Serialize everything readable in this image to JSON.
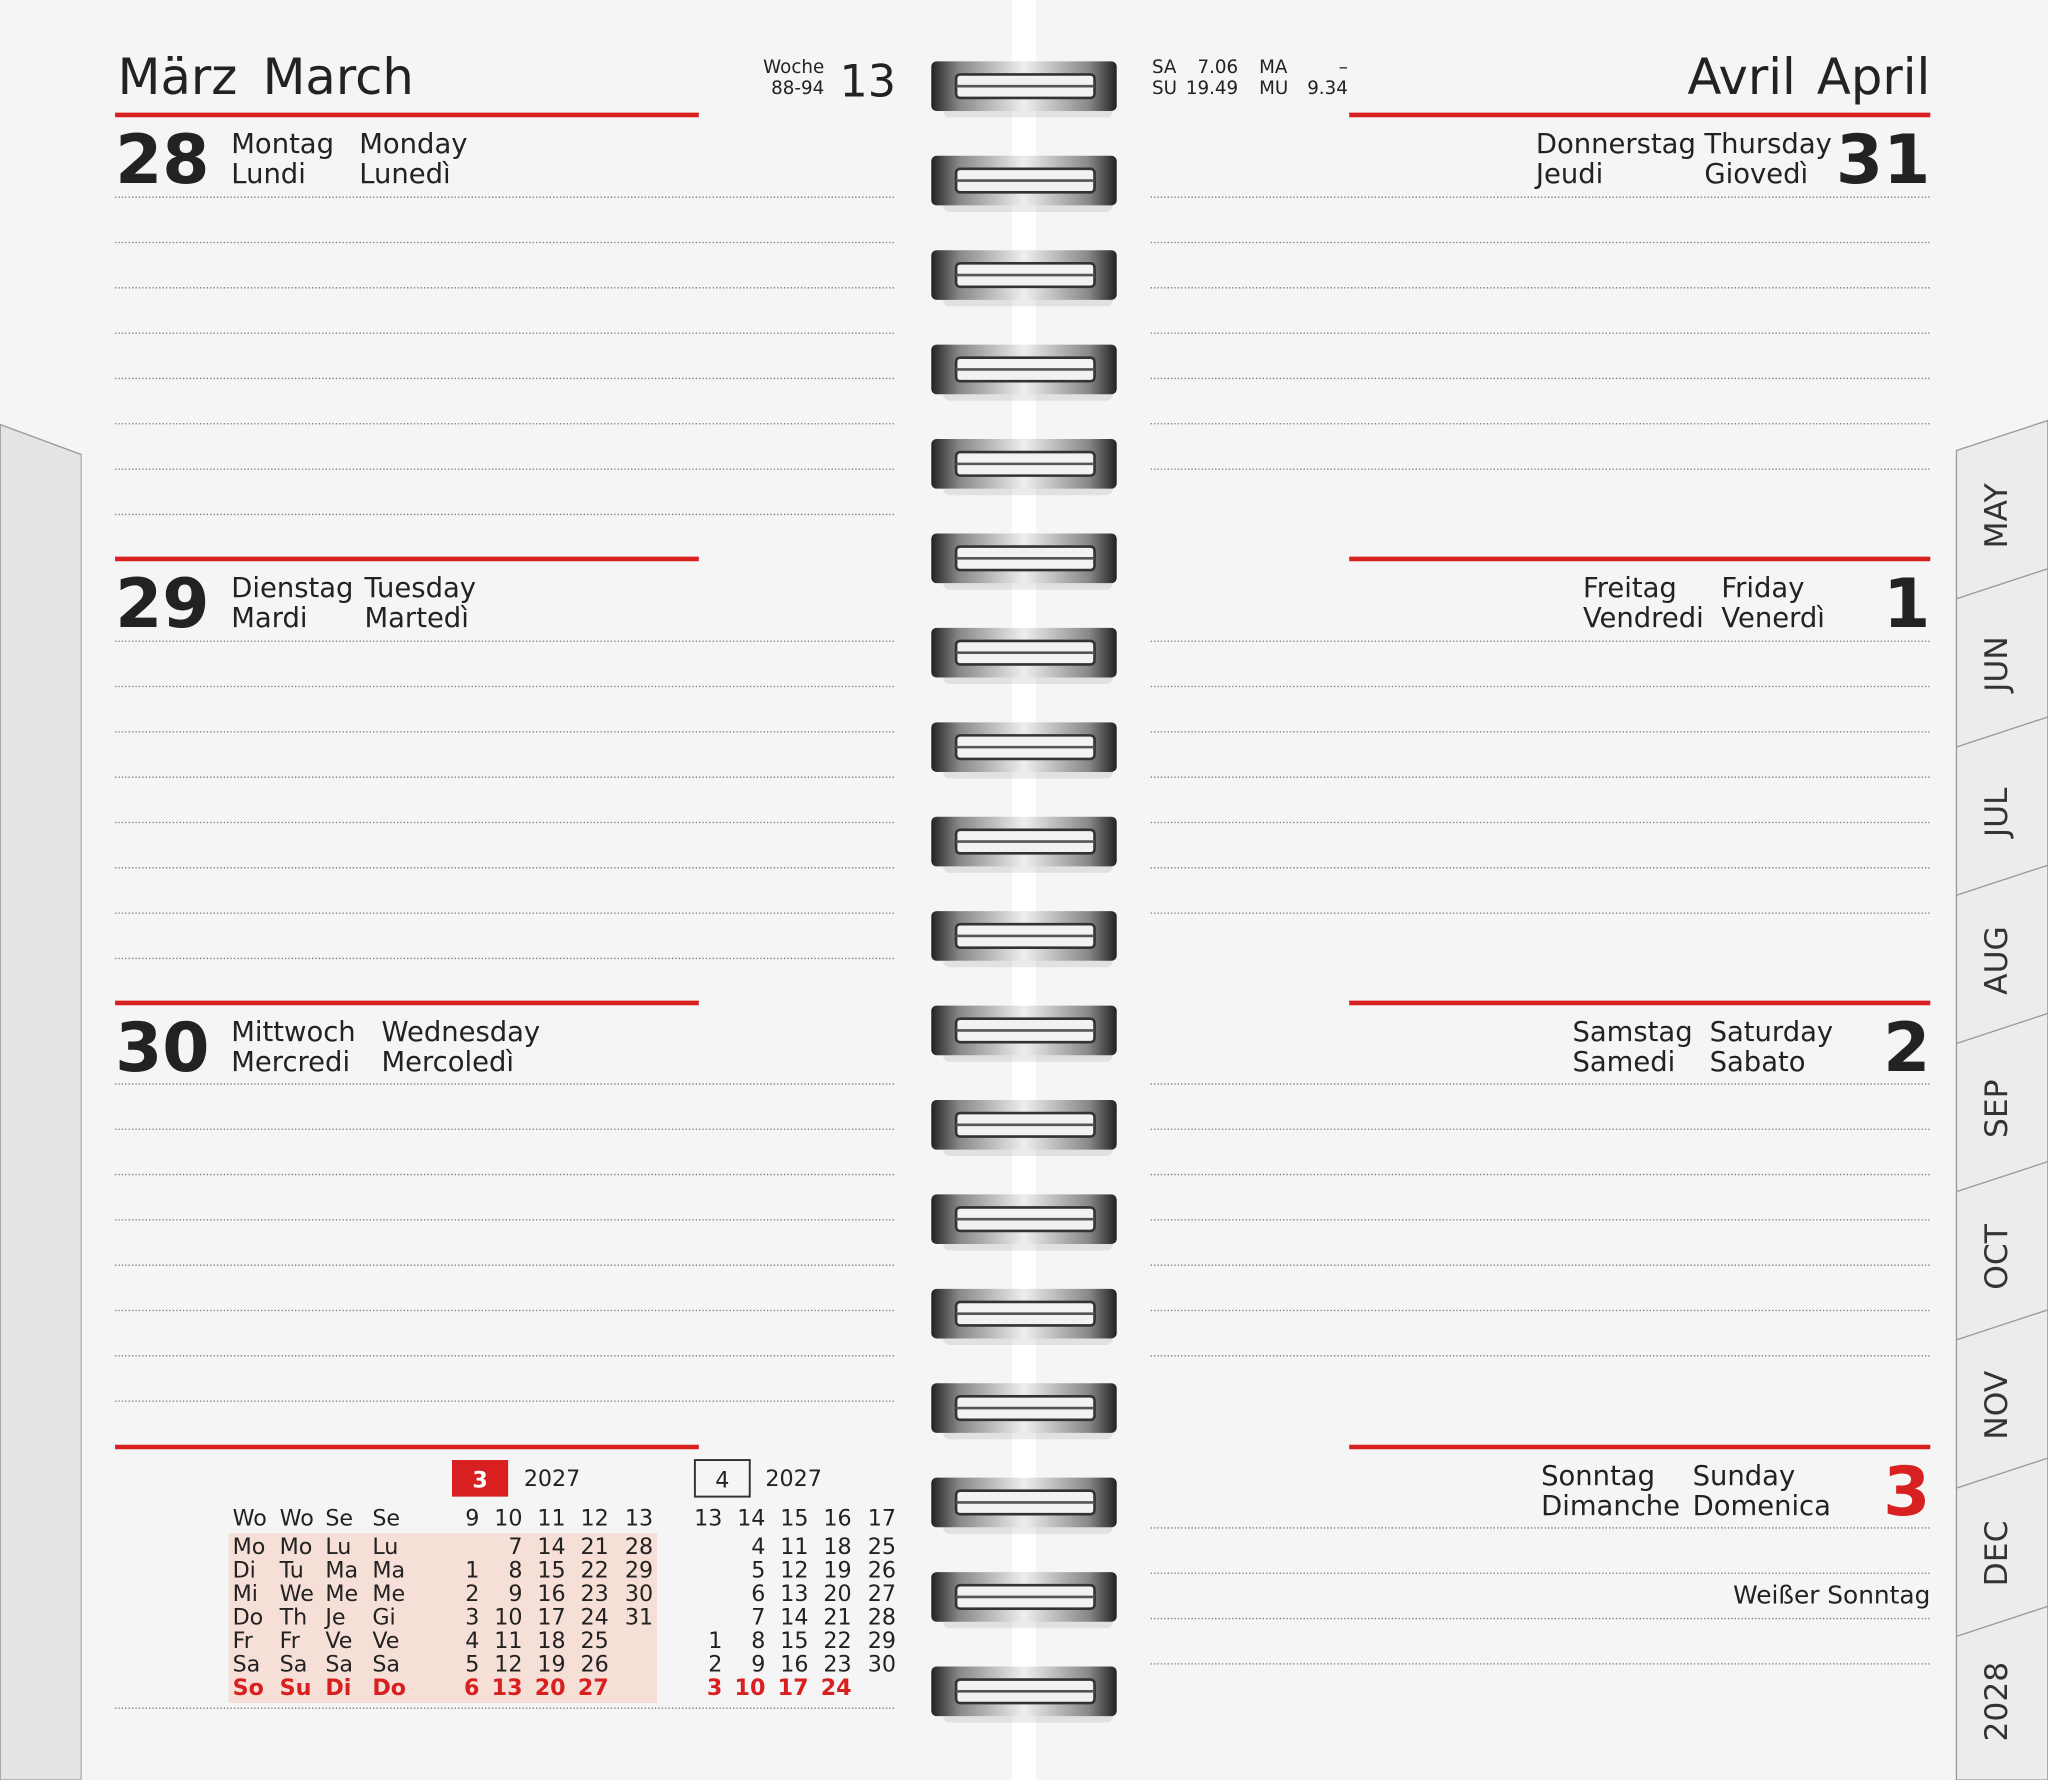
{
  "left_page": {
    "month_de": "März",
    "month_en": "March",
    "week_label": "Woche",
    "week_days": "88-94",
    "week_number": 13,
    "days": [
      {
        "day": 28,
        "names": [
          "Montag",
          "Monday",
          "Lundi",
          "Lunedì"
        ]
      },
      {
        "day": 29,
        "names": [
          "Dienstag",
          "Tuesday",
          "Mardi",
          "Martedì"
        ]
      },
      {
        "day": 30,
        "names": [
          "Mittwoch",
          "Wednesday",
          "Mercredi",
          "Mercoledì"
        ]
      }
    ]
  },
  "right_page": {
    "sun_moon": [
      [
        "SA",
        "7.06",
        "MA",
        "–"
      ],
      [
        "SU",
        "19.49",
        "MU",
        "9.34"
      ]
    ],
    "month_fr": "Avril",
    "month_en": "April",
    "days": [
      {
        "day": 31,
        "names": [
          "Donnerstag",
          "Thursday",
          "Jeudi",
          "Giovedì"
        ]
      },
      {
        "day": 1,
        "names": [
          "Freitag",
          "Friday",
          "Vendredi",
          "Venerdì"
        ]
      },
      {
        "day": 2,
        "names": [
          "Samstag",
          "Saturday",
          "Samedi",
          "Sabato"
        ]
      },
      {
        "day": 3,
        "names": [
          "Sonntag",
          "Sunday",
          "Dimanche",
          "Domenica"
        ],
        "note": "Weißer Sonntag"
      }
    ]
  },
  "mini_calendar": {
    "weekday_header": [
      "Wo",
      "Wo",
      "Se",
      "Se"
    ],
    "weekdays": [
      [
        "Mo",
        "Mo",
        "Lu",
        "Lu"
      ],
      [
        "Di",
        "Tu",
        "Ma",
        "Ma"
      ],
      [
        "Mi",
        "We",
        "Me",
        "Me"
      ],
      [
        "Do",
        "Th",
        "Je",
        "Gi"
      ],
      [
        "Fr",
        "Fr",
        "Ve",
        "Ve"
      ],
      [
        "Sa",
        "Sa",
        "Sa",
        "Sa"
      ],
      [
        "So",
        "Su",
        "Di",
        "Do"
      ]
    ],
    "months": [
      {
        "month": 3,
        "year": 2027,
        "weeks": [
          9,
          10,
          11,
          12,
          13
        ],
        "rows": [
          [
            null,
            7,
            14,
            21,
            28
          ],
          [
            1,
            8,
            15,
            22,
            29
          ],
          [
            2,
            9,
            16,
            23,
            30
          ],
          [
            3,
            10,
            17,
            24,
            31
          ],
          [
            4,
            11,
            18,
            25
          ],
          [
            5,
            12,
            19,
            26
          ],
          [
            6,
            13,
            20,
            27
          ]
        ]
      },
      {
        "month": 4,
        "year": 2027,
        "weeks": [
          13,
          14,
          15,
          16,
          17
        ],
        "rows": [
          [
            null,
            4,
            11,
            18,
            25
          ],
          [
            null,
            5,
            12,
            19,
            26
          ],
          [
            null,
            6,
            13,
            20,
            27
          ],
          [
            null,
            7,
            14,
            21,
            28
          ],
          [
            1,
            8,
            15,
            22,
            29
          ],
          [
            2,
            9,
            16,
            23,
            30
          ],
          [
            3,
            10,
            17,
            24
          ]
        ]
      }
    ]
  },
  "tabs": [
    "MAY",
    "JUN",
    "JUL",
    "AUG",
    "SEP",
    "OCT",
    "NOV",
    "DEC",
    "2028"
  ]
}
